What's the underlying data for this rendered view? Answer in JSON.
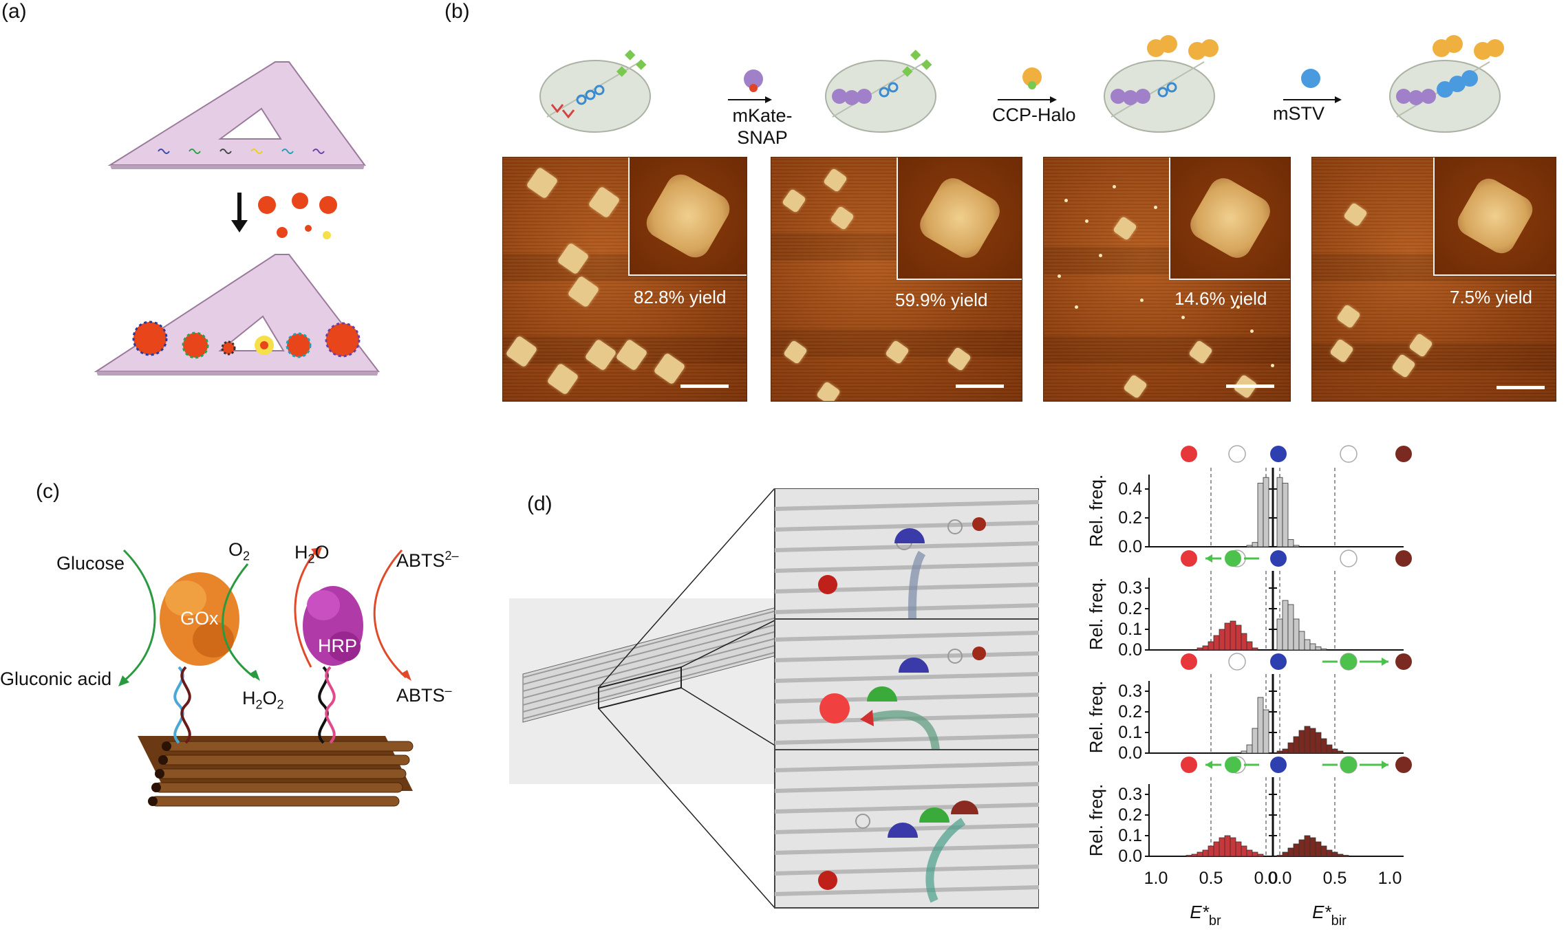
{
  "panels": {
    "a": "(a)",
    "b": "(b)",
    "c": "(c)",
    "d": "(d)"
  },
  "panel_b": {
    "step_labels": [
      "mKate-\nSNAP",
      "CCP-Halo",
      "mSTV"
    ],
    "step_label_lines": [
      [
        "mKate-",
        "SNAP"
      ],
      [
        "CCP-Halo"
      ],
      [
        "mSTV"
      ]
    ],
    "yields": [
      "82.8% yield",
      "59.9% yield",
      "14.6% yield",
      "7.5% yield"
    ]
  },
  "panel_c": {
    "glucose": "Glucose",
    "o2": "O",
    "o2_sub": "2",
    "h2o_a": "H",
    "h2o_sub": "2",
    "h2o_b": "O",
    "abts2": "ABTS",
    "abts2_sup": "2–",
    "gox": "GOx",
    "hrp": "HRP",
    "gluconic": "Gluconic acid",
    "h2o2_a": "H",
    "h2o2_sub1": "2",
    "h2o2_b": "O",
    "h2o2_sub2": "2",
    "abts1": "ABTS",
    "abts1_sup": "–"
  },
  "panel_d": {
    "y_label": "Rel. freq.",
    "x_label_left": "E*",
    "x_label_left_sub": "br",
    "x_label_right": "E*",
    "x_label_right_sub": "bir",
    "x_ticks_left": [
      "1.0",
      "0.5",
      "0.0"
    ],
    "x_ticks_right": [
      "0.0",
      "0.5",
      "1.0"
    ],
    "rows": [
      {
        "y_ticks": [
          "0.0",
          "0.2",
          "0.4"
        ],
        "ymax": 0.5
      },
      {
        "y_ticks": [
          "0.0",
          "0.1",
          "0.2",
          "0.3"
        ],
        "ymax": 0.35
      },
      {
        "y_ticks": [
          "0.0",
          "0.1",
          "0.2",
          "0.3"
        ],
        "ymax": 0.35
      },
      {
        "y_ticks": [
          "0.0",
          "0.1",
          "0.2",
          "0.3"
        ],
        "ymax": 0.35
      }
    ],
    "colors": {
      "red": "#e8373a",
      "blue": "#2e3fb0",
      "green": "#4cc24c",
      "brown": "#7a2a20",
      "gray_bar": "#c8c8c8",
      "red_bar": "#c8373a",
      "brown_bar": "#7a2a20"
    }
  },
  "chart_data": {
    "type": "bar",
    "xlim_left": [
      1.0,
      0.0
    ],
    "xlim_right": [
      0.0,
      1.0
    ],
    "series": [
      {
        "row": 1,
        "side": "left",
        "color": "gray",
        "x": [
          0.15,
          0.1,
          0.05,
          0.0
        ],
        "values": [
          0.01,
          0.03,
          0.44,
          0.48
        ]
      },
      {
        "row": 1,
        "side": "right",
        "color": "gray",
        "x": [
          0.0,
          0.05,
          0.1,
          0.15
        ],
        "values": [
          0.48,
          0.44,
          0.05,
          0.01
        ]
      },
      {
        "row": 2,
        "side": "left",
        "color": "red",
        "x": [
          0.6,
          0.55,
          0.5,
          0.45,
          0.4,
          0.35,
          0.3,
          0.25,
          0.2,
          0.15,
          0.1
        ],
        "values": [
          0.01,
          0.02,
          0.04,
          0.07,
          0.1,
          0.13,
          0.14,
          0.12,
          0.08,
          0.04,
          0.01
        ]
      },
      {
        "row": 2,
        "side": "right",
        "color": "gray",
        "x": [
          0.0,
          0.05,
          0.1,
          0.15,
          0.2,
          0.25,
          0.3,
          0.35,
          0.4
        ],
        "values": [
          0.15,
          0.24,
          0.22,
          0.15,
          0.09,
          0.05,
          0.03,
          0.015,
          0.005
        ]
      },
      {
        "row": 3,
        "side": "left",
        "color": "gray",
        "x": [
          0.2,
          0.15,
          0.1,
          0.05,
          0.0
        ],
        "values": [
          0.01,
          0.04,
          0.12,
          0.27,
          0.21
        ]
      },
      {
        "row": 3,
        "side": "right",
        "color": "brown",
        "x": [
          0.0,
          0.05,
          0.1,
          0.15,
          0.2,
          0.25,
          0.3,
          0.35,
          0.4,
          0.45,
          0.5,
          0.55
        ],
        "values": [
          0.01,
          0.02,
          0.05,
          0.08,
          0.11,
          0.13,
          0.12,
          0.1,
          0.07,
          0.04,
          0.02,
          0.01
        ]
      },
      {
        "row": 4,
        "side": "left",
        "color": "red",
        "x": [
          0.7,
          0.65,
          0.6,
          0.55,
          0.5,
          0.45,
          0.4,
          0.35,
          0.3,
          0.25,
          0.2,
          0.15,
          0.1,
          0.05
        ],
        "values": [
          0.005,
          0.01,
          0.02,
          0.03,
          0.05,
          0.07,
          0.09,
          0.1,
          0.09,
          0.07,
          0.05,
          0.03,
          0.02,
          0.01
        ]
      },
      {
        "row": 4,
        "side": "right",
        "color": "brown",
        "x": [
          0.0,
          0.05,
          0.1,
          0.15,
          0.2,
          0.25,
          0.3,
          0.35,
          0.4,
          0.45,
          0.5,
          0.55,
          0.6
        ],
        "values": [
          0.005,
          0.02,
          0.04,
          0.06,
          0.08,
          0.1,
          0.09,
          0.07,
          0.05,
          0.03,
          0.02,
          0.01,
          0.005
        ]
      }
    ]
  }
}
